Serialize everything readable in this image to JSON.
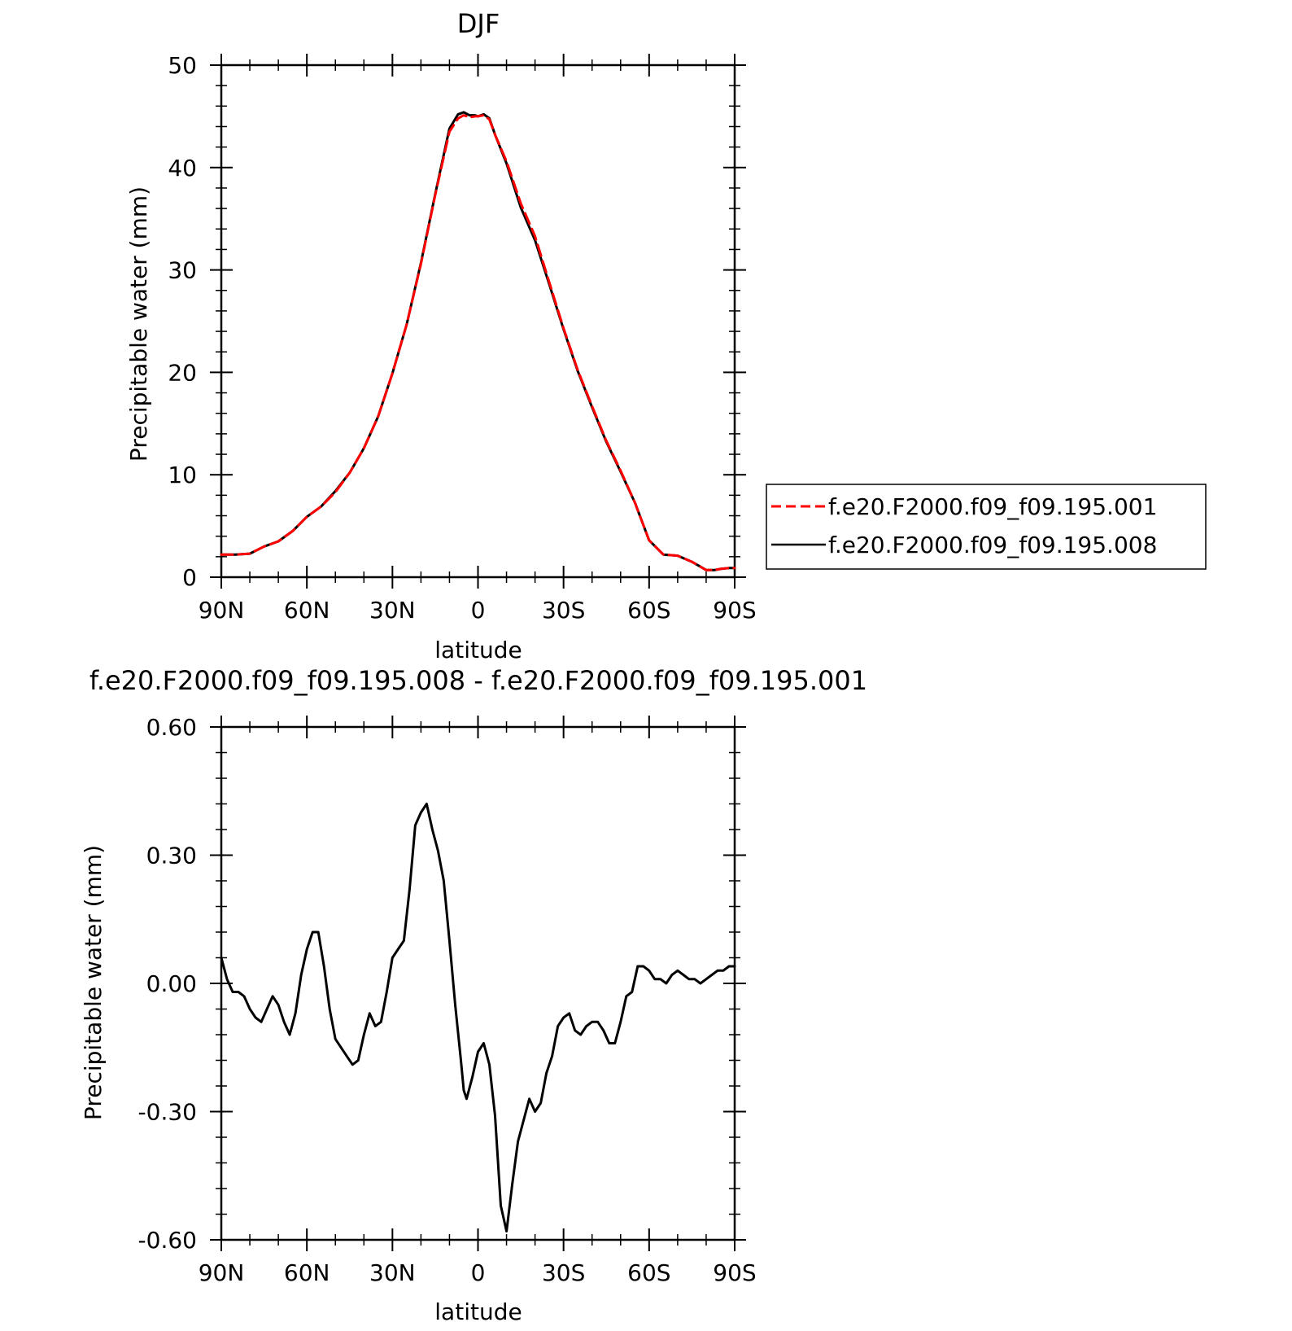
{
  "chart_data": [
    {
      "type": "line",
      "title": "DJF",
      "xlabel": "latitude",
      "ylabel": "Precipitable water (mm)",
      "x_unit": "degrees latitude (positive = North, negative = South)",
      "xlim": [
        90,
        -90
      ],
      "ylim": [
        0,
        50
      ],
      "x_ticks": [
        90,
        60,
        30,
        0,
        -30,
        -60,
        -90
      ],
      "x_tick_labels": [
        "90N",
        "60N",
        "30N",
        "0",
        "30S",
        "60S",
        "90S"
      ],
      "y_ticks": [
        0,
        10,
        20,
        30,
        40,
        50
      ],
      "y_tick_labels": [
        "0",
        "10",
        "20",
        "30",
        "40",
        "50"
      ],
      "grid": false,
      "legend_position": "right",
      "series": [
        {
          "name": "f.e20.F2000.f09_f09.195.001",
          "color": "#ff0000",
          "dash": "dashed",
          "x": [
            90,
            85,
            80,
            75,
            70,
            65,
            60,
            55,
            50,
            45,
            40,
            35,
            30,
            25,
            20,
            15,
            10,
            7,
            5,
            3,
            1,
            0,
            -2,
            -4,
            -6,
            -10,
            -15,
            -20,
            -25,
            -30,
            -35,
            -40,
            -45,
            -50,
            -55,
            -60,
            -65,
            -70,
            -75,
            -80,
            -83,
            -85,
            -88,
            -90
          ],
          "values": [
            2.2,
            2.2,
            2.3,
            3.0,
            3.5,
            4.5,
            5.9,
            6.9,
            8.3,
            10.2,
            12.6,
            15.7,
            19.9,
            24.7,
            30.6,
            37.3,
            43.5,
            44.8,
            45.1,
            44.9,
            45.0,
            45.0,
            45.1,
            44.7,
            43.2,
            40.6,
            36.5,
            33.3,
            28.8,
            24.3,
            20.2,
            16.7,
            13.3,
            10.4,
            7.3,
            3.6,
            2.2,
            2.1,
            1.5,
            0.7,
            0.7,
            0.8,
            0.9,
            0.9
          ],
          "values_note": "approximate"
        },
        {
          "name": "f.e20.F2000.f09_f09.195.008",
          "color": "#000000",
          "dash": "solid",
          "x": [
            90,
            85,
            80,
            75,
            70,
            65,
            60,
            55,
            50,
            45,
            40,
            35,
            30,
            25,
            20,
            15,
            10,
            7,
            5,
            3,
            1,
            0,
            -2,
            -4,
            -6,
            -10,
            -15,
            -20,
            -25,
            -30,
            -35,
            -40,
            -45,
            -50,
            -55,
            -60,
            -65,
            -70,
            -75,
            -80,
            -83,
            -85,
            -88,
            -90
          ],
          "values": [
            2.2,
            2.2,
            2.3,
            3.0,
            3.5,
            4.5,
            5.9,
            6.9,
            8.4,
            10.2,
            12.6,
            15.7,
            19.9,
            24.7,
            30.7,
            37.4,
            43.8,
            45.2,
            45.4,
            45.1,
            45.1,
            45.0,
            45.2,
            44.8,
            43.2,
            40.4,
            36.1,
            32.9,
            28.6,
            24.2,
            20.1,
            16.6,
            13.2,
            10.3,
            7.3,
            3.6,
            2.2,
            2.1,
            1.5,
            0.7,
            0.7,
            0.8,
            0.9,
            0.9
          ],
          "values_note": "approximate"
        }
      ]
    },
    {
      "type": "line",
      "title": "f.e20.F2000.f09_f09.195.008 - f.e20.F2000.f09_f09.195.001",
      "xlabel": "latitude",
      "ylabel": "Precipitable water (mm)",
      "xlim": [
        90,
        -90
      ],
      "ylim": [
        -0.6,
        0.6
      ],
      "x_ticks": [
        90,
        60,
        30,
        0,
        -30,
        -60,
        -90
      ],
      "x_tick_labels": [
        "90N",
        "60N",
        "30N",
        "0",
        "30S",
        "60S",
        "90S"
      ],
      "y_ticks": [
        -0.6,
        -0.3,
        0,
        0.3,
        0.6
      ],
      "y_tick_labels": [
        "-0.60",
        "-0.30",
        "0.00",
        "0.30",
        "0.60"
      ],
      "grid": false,
      "series": [
        {
          "color": "#000000",
          "dash": "solid",
          "x": [
            90,
            88,
            86,
            84,
            82,
            80,
            78,
            76,
            74,
            72,
            70,
            68,
            66,
            64,
            62,
            60,
            58,
            56,
            54,
            52,
            50,
            48,
            46,
            44,
            42,
            40,
            38,
            36,
            34,
            32,
            30,
            28,
            26,
            24,
            22,
            20,
            18,
            16,
            14,
            12,
            10,
            8,
            6,
            5,
            4,
            2,
            0,
            -2,
            -4,
            -6,
            -8,
            -10,
            -12,
            -14,
            -16,
            -18,
            -20,
            -22,
            -24,
            -26,
            -28,
            -30,
            -32,
            -34,
            -36,
            -38,
            -40,
            -42,
            -44,
            -46,
            -48,
            -50,
            -52,
            -54,
            -56,
            -58,
            -60,
            -62,
            -64,
            -66,
            -68,
            -70,
            -72,
            -74,
            -76,
            -78,
            -80,
            -82,
            -84,
            -86,
            -88,
            -90
          ],
          "values": [
            0.06,
            0.01,
            -0.02,
            -0.02,
            -0.03,
            -0.06,
            -0.08,
            -0.09,
            -0.06,
            -0.03,
            -0.05,
            -0.09,
            -0.12,
            -0.07,
            0.02,
            0.08,
            0.12,
            0.12,
            0.04,
            -0.06,
            -0.13,
            -0.15,
            -0.17,
            -0.19,
            -0.18,
            -0.12,
            -0.07,
            -0.1,
            -0.09,
            -0.02,
            0.06,
            0.08,
            0.1,
            0.22,
            0.37,
            0.4,
            0.42,
            0.36,
            0.31,
            0.24,
            0.1,
            -0.05,
            -0.18,
            -0.25,
            -0.27,
            -0.22,
            -0.16,
            -0.14,
            -0.19,
            -0.31,
            -0.52,
            -0.58,
            -0.47,
            -0.37,
            -0.32,
            -0.27,
            -0.3,
            -0.28,
            -0.21,
            -0.17,
            -0.1,
            -0.08,
            -0.07,
            -0.11,
            -0.12,
            -0.1,
            -0.09,
            -0.09,
            -0.11,
            -0.14,
            -0.14,
            -0.09,
            -0.03,
            -0.02,
            0.04,
            0.04,
            0.03,
            0.01,
            0.01,
            0.0,
            0.02,
            0.03,
            0.02,
            0.01,
            0.01,
            0.0,
            0.01,
            0.02,
            0.03,
            0.03,
            0.04,
            0.04
          ],
          "values_note": "approximate"
        }
      ]
    }
  ]
}
